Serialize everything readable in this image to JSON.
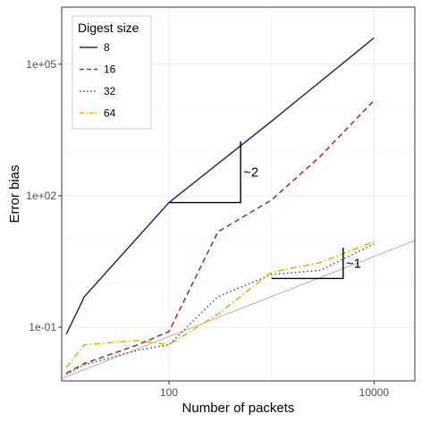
{
  "chart_data": {
    "type": "line",
    "xlabel": "Number of packets",
    "ylabel": "Error bias",
    "x_scale": "log10",
    "y_scale": "log10",
    "xlim": [
      9,
      25000
    ],
    "ylim": [
      0.006,
      2000000
    ],
    "x_ticks": [
      {
        "value": 100,
        "label": "100"
      },
      {
        "value": 10000,
        "label": "10000"
      }
    ],
    "y_ticks": [
      {
        "value": 0.1,
        "label": "1e-01"
      },
      {
        "value": 100,
        "label": "1e+02"
      },
      {
        "value": 100000,
        "label": "1e+05"
      }
    ],
    "grid": true,
    "legend": {
      "title": "Digest size",
      "position": "top-left"
    },
    "series": [
      {
        "name": "8",
        "color": "#1f2a7a",
        "dash": "solid",
        "points": [
          [
            10,
            0.07
          ],
          [
            15,
            0.5
          ],
          [
            100,
            70
          ],
          [
            1000,
            5000
          ],
          [
            10000,
            400000
          ]
        ]
      },
      {
        "name": "16",
        "color": "#b22222",
        "dash": "dashed",
        "points": [
          [
            10,
            0.009
          ],
          [
            15,
            0.015
          ],
          [
            50,
            0.04
          ],
          [
            100,
            0.08
          ],
          [
            300,
            15
          ],
          [
            1000,
            80
          ],
          [
            3000,
            800
          ],
          [
            10000,
            15000
          ]
        ]
      },
      {
        "name": "32",
        "color": "#2e5e4e",
        "dash": "dotted",
        "points": [
          [
            10,
            0.0085
          ],
          [
            15,
            0.014
          ],
          [
            50,
            0.03
          ],
          [
            100,
            0.04
          ],
          [
            300,
            0.5
          ],
          [
            1000,
            1.6
          ],
          [
            3000,
            2
          ],
          [
            10000,
            8
          ]
        ]
      },
      {
        "name": "64",
        "color": "#f2a900",
        "dash": "dashdot",
        "points": [
          [
            10,
            0.012
          ],
          [
            15,
            0.04
          ],
          [
            50,
            0.05
          ],
          [
            100,
            0.04
          ],
          [
            300,
            0.2
          ],
          [
            1000,
            1.8
          ],
          [
            3000,
            3
          ],
          [
            10000,
            9
          ]
        ]
      }
    ],
    "reference_line": {
      "color": "#aaaaaa",
      "points": [
        [
          9,
          0.0068
        ],
        [
          25000,
          9.5
        ]
      ]
    },
    "annotations": [
      {
        "text": "~2",
        "corner": [
          100,
          70
        ],
        "x_end": 500,
        "y_end": 1750
      },
      {
        "text": "~1",
        "corner": [
          1000,
          1.3
        ],
        "x_end": 5000,
        "y_end": 6.5
      }
    ]
  }
}
